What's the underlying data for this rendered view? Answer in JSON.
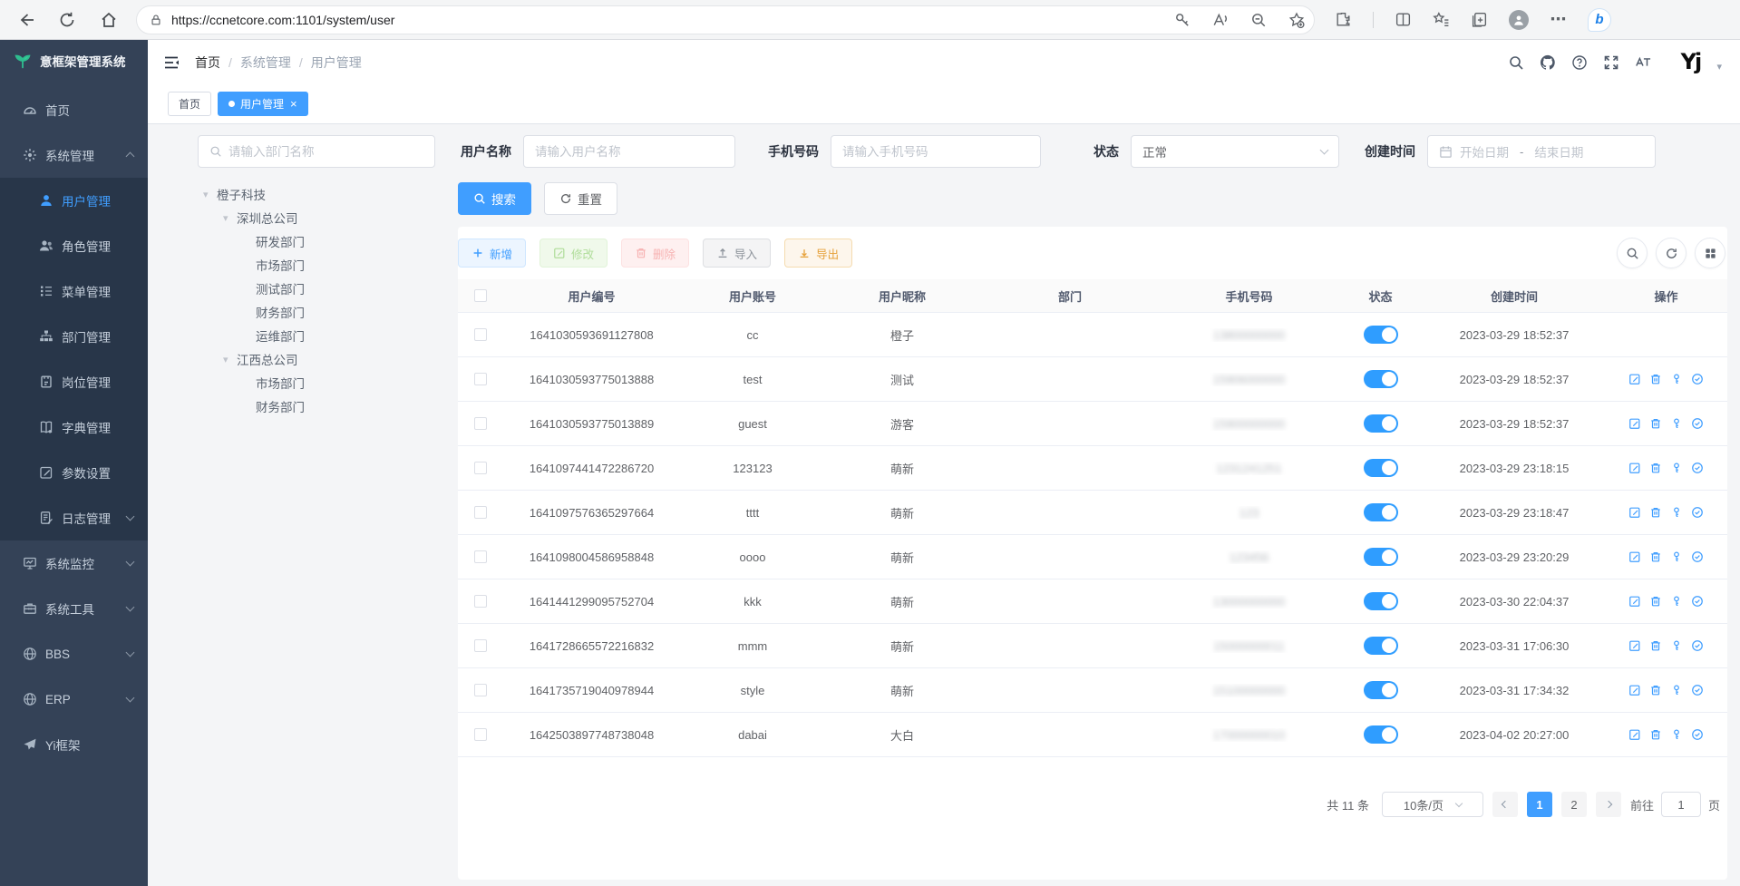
{
  "browser": {
    "url": "https://ccnetcore.com:1101/system/user"
  },
  "icons": {
    "close": "×",
    "caret_down": "▾",
    "more": "⋯",
    "breadcrumb_sep": "/"
  },
  "colors": {
    "primary": "#409eff",
    "sidebar_bg": "#344257",
    "submenu_bg": "#283649",
    "tab_active": "#409eff",
    "toggle_on": "#2f9dff",
    "export_orange": "#e6a23c"
  },
  "sidebar": {
    "logo_text": "意框架管理系统",
    "menu": [
      {
        "key": "home",
        "label": "首页",
        "icon": "dashboard"
      },
      {
        "key": "system-management",
        "label": "系统管理",
        "icon": "gear",
        "chevron": "up"
      },
      {
        "key": "user-management",
        "label": "用户管理",
        "icon": "user",
        "child": true,
        "active": true
      },
      {
        "key": "role-management",
        "label": "角色管理",
        "icon": "roles",
        "child": true
      },
      {
        "key": "menu-management",
        "label": "菜单管理",
        "icon": "menutree",
        "child": true
      },
      {
        "key": "dept-management",
        "label": "部门管理",
        "icon": "orgchart",
        "child": true
      },
      {
        "key": "post-management",
        "label": "岗位管理",
        "icon": "badge",
        "child": true
      },
      {
        "key": "dict-management",
        "label": "字典管理",
        "icon": "book",
        "child": true
      },
      {
        "key": "param-settings",
        "label": "参数设置",
        "icon": "editpen",
        "child": true
      },
      {
        "key": "log-management",
        "label": "日志管理",
        "icon": "logdoc",
        "child": true,
        "chevron": "down"
      },
      {
        "key": "system-monitor",
        "label": "系统监控",
        "icon": "monitor",
        "chevron": "down"
      },
      {
        "key": "system-tools",
        "label": "系统工具",
        "icon": "toolbox",
        "chevron": "down"
      },
      {
        "key": "bbs",
        "label": "BBS",
        "icon": "globe",
        "chevron": "down"
      },
      {
        "key": "erp",
        "label": "ERP",
        "icon": "globe",
        "chevron": "down"
      },
      {
        "key": "yi-framework",
        "label": "Yi框架",
        "icon": "plane"
      }
    ]
  },
  "header": {
    "breadcrumb": [
      "首页",
      "系统管理",
      "用户管理"
    ],
    "avatar_text": "Yj"
  },
  "tabs": [
    {
      "label": "首页",
      "active": false
    },
    {
      "label": "用户管理",
      "active": true
    }
  ],
  "filters": {
    "dept_placeholder": "请输入部门名称",
    "username_label": "用户名称",
    "username_placeholder": "请输入用户名称",
    "phone_label": "手机号码",
    "phone_placeholder": "请输入手机号码",
    "status_label": "状态",
    "status_value": "正常",
    "created_label": "创建时间",
    "date_start": "开始日期",
    "date_sep": "-",
    "date_end": "结束日期"
  },
  "tree": {
    "nodes": [
      {
        "label": "橙子科技",
        "level": 0,
        "caret": true
      },
      {
        "label": "深圳总公司",
        "level": 1,
        "caret": true
      },
      {
        "label": "研发部门",
        "level": 2
      },
      {
        "label": "市场部门",
        "level": 2
      },
      {
        "label": "测试部门",
        "level": 2
      },
      {
        "label": "财务部门",
        "level": 2
      },
      {
        "label": "运维部门",
        "level": 2
      },
      {
        "label": "江西总公司",
        "level": 1,
        "caret": true
      },
      {
        "label": "市场部门",
        "level": 2
      },
      {
        "label": "财务部门",
        "level": 2
      }
    ]
  },
  "actions": {
    "search": "搜索",
    "reset": "重置",
    "add": "新增",
    "edit": "修改",
    "delete": "删除",
    "import": "导入",
    "export": "导出"
  },
  "table": {
    "columns": [
      "用户编号",
      "用户账号",
      "用户昵称",
      "部门",
      "手机号码",
      "状态",
      "创建时间",
      "操作"
    ],
    "rows": [
      {
        "id": "1641030593691127808",
        "account": "cc",
        "nickname": "橙子",
        "dept": "",
        "phone": "13800000000",
        "phone_redacted": true,
        "status": true,
        "created": "2023-03-29 18:52:37",
        "actions": false
      },
      {
        "id": "1641030593775013888",
        "account": "test",
        "nickname": "测试",
        "dept": "",
        "phone": "15906000000",
        "phone_redacted": true,
        "status": true,
        "created": "2023-03-29 18:52:37",
        "actions": true
      },
      {
        "id": "1641030593775013889",
        "account": "guest",
        "nickname": "游客",
        "dept": "",
        "phone": "15900000000",
        "phone_redacted": true,
        "status": true,
        "created": "2023-03-29 18:52:37",
        "actions": true
      },
      {
        "id": "1641097441472286720",
        "account": "123123",
        "nickname": "萌新",
        "dept": "",
        "phone": "1231241251",
        "phone_redacted": true,
        "status": true,
        "created": "2023-03-29 23:18:15",
        "actions": true
      },
      {
        "id": "1641097576365297664",
        "account": "tttt",
        "nickname": "萌新",
        "dept": "",
        "phone": "123",
        "phone_redacted": true,
        "status": true,
        "created": "2023-03-29 23:18:47",
        "actions": true
      },
      {
        "id": "1641098004586958848",
        "account": "oooo",
        "nickname": "萌新",
        "dept": "",
        "phone": "123456",
        "phone_redacted": true,
        "status": true,
        "created": "2023-03-29 23:20:29",
        "actions": true
      },
      {
        "id": "1641441299095752704",
        "account": "kkk",
        "nickname": "萌新",
        "dept": "",
        "phone": "13000000000",
        "phone_redacted": true,
        "status": true,
        "created": "2023-03-30 22:04:37",
        "actions": true
      },
      {
        "id": "1641728665572216832",
        "account": "mmm",
        "nickname": "萌新",
        "dept": "",
        "phone": "15000000011",
        "phone_redacted": true,
        "status": true,
        "created": "2023-03-31 17:06:30",
        "actions": true
      },
      {
        "id": "1641735719040978944",
        "account": "style",
        "nickname": "萌新",
        "dept": "",
        "phone": "15100000000",
        "phone_redacted": true,
        "status": true,
        "created": "2023-03-31 17:34:32",
        "actions": true
      },
      {
        "id": "1642503897748738048",
        "account": "dabai",
        "nickname": "大白",
        "dept": "",
        "phone": "17000000010",
        "phone_redacted": true,
        "status": true,
        "created": "2023-04-02 20:27:00",
        "actions": true
      }
    ]
  },
  "pagination": {
    "total": "共 11 条",
    "page_size": "10条/页",
    "pages": [
      "1",
      "2"
    ],
    "active_page": "1",
    "goto_label": "前往",
    "goto_value": "1",
    "unit": "页"
  }
}
